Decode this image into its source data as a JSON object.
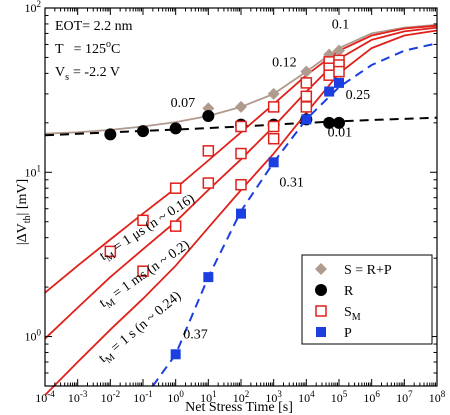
{
  "chart_data": {
    "type": "scatter",
    "xscale": "log",
    "yscale": "log",
    "xlim": [
      0.0001,
      100000000
    ],
    "ylim": [
      0.5,
      100
    ],
    "xlabel": "Net Stress Time  [s]",
    "ylabel_main": "|ΔV",
    "ylabel_sub": "th",
    "ylabel_tail": "|  [mV]",
    "x_ticks": [
      {
        "v": 0.0001,
        "m": "10",
        "e": "-4"
      },
      {
        "v": 0.001,
        "m": "10",
        "e": "-3"
      },
      {
        "v": 0.01,
        "m": "10",
        "e": "-2"
      },
      {
        "v": 0.1,
        "m": "10",
        "e": "-1"
      },
      {
        "v": 1,
        "m": "10",
        "e": "0"
      },
      {
        "v": 10,
        "m": "10",
        "e": "1"
      },
      {
        "v": 100,
        "m": "10",
        "e": "2"
      },
      {
        "v": 1000,
        "m": "10",
        "e": "3"
      },
      {
        "v": 10000,
        "m": "10",
        "e": "4"
      },
      {
        "v": 100000,
        "m": "10",
        "e": "5"
      },
      {
        "v": 1000000,
        "m": "10",
        "e": "6"
      },
      {
        "v": 10000000,
        "m": "10",
        "e": "7"
      },
      {
        "v": 100000000,
        "m": "10",
        "e": "8"
      }
    ],
    "y_ticks": [
      {
        "v": 1,
        "m": "10",
        "e": "0"
      },
      {
        "v": 10,
        "m": "10",
        "e": "1"
      },
      {
        "v": 100,
        "m": "10",
        "e": "2"
      }
    ],
    "conditions": {
      "eot_label": "EOT",
      "eot_value": "= 2.2 nm",
      "temp_label": "T",
      "temp_value": "= 125",
      "temp_sup": "o",
      "temp_unit": "C",
      "vs_main": "V",
      "vs_sub": "s",
      "vs_value": "= -2.2 V"
    },
    "series": [
      {
        "name": "S = R+P",
        "marker": "diamond",
        "color": "#b09a8e",
        "points": [
          [
            10,
            24.5
          ],
          [
            100,
            25
          ],
          [
            1000,
            30
          ],
          [
            10000,
            41
          ],
          [
            50000,
            52
          ],
          [
            100000,
            55
          ]
        ]
      },
      {
        "name": "R",
        "marker": "circle",
        "color": "#000000",
        "points": [
          [
            0.01,
            17
          ],
          [
            0.1,
            17.8
          ],
          [
            1,
            18.5
          ],
          [
            10,
            22
          ],
          [
            100,
            19.5
          ],
          [
            1000,
            19.5
          ],
          [
            10000,
            21
          ],
          [
            50000,
            20
          ],
          [
            100000,
            20
          ]
        ]
      },
      {
        "name_main": "S",
        "name_sub": "M",
        "marker": "square-open",
        "color": "#e0201a",
        "points": [
          [
            0.01,
            3.3
          ],
          [
            0.1,
            5.1
          ],
          [
            0.1,
            2.5
          ],
          [
            1,
            8
          ],
          [
            1,
            4.7
          ],
          [
            10,
            13.5
          ],
          [
            10,
            8.6
          ],
          [
            100,
            19
          ],
          [
            100,
            13
          ],
          [
            100,
            8.4
          ],
          [
            1000,
            25
          ],
          [
            1000,
            19
          ],
          [
            1000,
            16
          ],
          [
            10000,
            35
          ],
          [
            10000,
            29
          ],
          [
            10000,
            25
          ],
          [
            50000,
            47
          ],
          [
            50000,
            43
          ],
          [
            50000,
            39
          ],
          [
            100000,
            48
          ],
          [
            100000,
            45
          ],
          [
            100000,
            41
          ]
        ]
      },
      {
        "name": "P",
        "marker": "square",
        "color": "#1b3fe0",
        "points": [
          [
            1,
            0.78
          ],
          [
            10,
            2.3
          ],
          [
            100,
            5.6
          ],
          [
            1000,
            11.5
          ],
          [
            10000,
            21
          ],
          [
            50000,
            31
          ],
          [
            100000,
            35
          ]
        ]
      }
    ],
    "fits": [
      {
        "id": "fit-s-upper",
        "color": "#b09a8e",
        "dash": false,
        "points": [
          [
            0.0001,
            17.2
          ],
          [
            0.001,
            17.5
          ],
          [
            0.01,
            18.1
          ],
          [
            0.1,
            19
          ],
          [
            1,
            20.2
          ],
          [
            10,
            22
          ],
          [
            100,
            25
          ],
          [
            1000,
            30
          ],
          [
            10000,
            41
          ],
          [
            100000,
            57
          ],
          [
            1000000,
            70
          ],
          [
            10000000,
            76
          ],
          [
            100000000,
            79
          ]
        ]
      },
      {
        "id": "fit-r",
        "color": "#000000",
        "dash": true,
        "points": [
          [
            0.0001,
            16.8
          ],
          [
            0.01,
            17.5
          ],
          [
            1,
            18.2
          ],
          [
            100,
            19
          ],
          [
            10000,
            20
          ],
          [
            1000000,
            20.8
          ],
          [
            100000000,
            21.5
          ]
        ]
      },
      {
        "id": "fit-sm-1us",
        "color": "#e0201a",
        "dash": false,
        "points": [
          [
            0.0001,
            1.85
          ],
          [
            0.001,
            2.7
          ],
          [
            0.01,
            3.9
          ],
          [
            0.1,
            5.6
          ],
          [
            1,
            8
          ],
          [
            10,
            11.8
          ],
          [
            100,
            17.5
          ],
          [
            1000,
            26
          ],
          [
            10000,
            39
          ],
          [
            100000,
            55
          ],
          [
            1000000,
            68
          ],
          [
            10000000,
            75
          ],
          [
            100000000,
            78
          ]
        ]
      },
      {
        "id": "fit-sm-1ms",
        "color": "#e0201a",
        "dash": false,
        "points": [
          [
            0.0001,
            0.97
          ],
          [
            0.001,
            1.5
          ],
          [
            0.01,
            2.3
          ],
          [
            0.1,
            3.4
          ],
          [
            1,
            5
          ],
          [
            10,
            7.8
          ],
          [
            100,
            12
          ],
          [
            1000,
            19
          ],
          [
            10000,
            31
          ],
          [
            100000,
            49
          ],
          [
            1000000,
            64
          ],
          [
            10000000,
            72
          ],
          [
            100000000,
            76
          ]
        ]
      },
      {
        "id": "fit-sm-1s",
        "color": "#e0201a",
        "dash": false,
        "points": [
          [
            0.0001,
            0.44
          ],
          [
            0.001,
            0.7
          ],
          [
            0.01,
            1.1
          ],
          [
            0.1,
            1.7
          ],
          [
            1,
            2.7
          ],
          [
            10,
            4.6
          ],
          [
            100,
            7.8
          ],
          [
            1000,
            13
          ],
          [
            10000,
            23
          ],
          [
            100000,
            40
          ],
          [
            1000000,
            57
          ],
          [
            10000000,
            68
          ],
          [
            100000000,
            73
          ]
        ]
      },
      {
        "id": "fit-p",
        "color": "#1b3fe0",
        "dash": true,
        "points": [
          [
            0.2,
            0.5
          ],
          [
            1,
            0.78
          ],
          [
            10,
            2.3
          ],
          [
            100,
            5.8
          ],
          [
            1000,
            11.5
          ],
          [
            10000,
            21
          ],
          [
            100000,
            33
          ],
          [
            1000000,
            45
          ],
          [
            10000000,
            55
          ],
          [
            100000000,
            61
          ]
        ]
      }
    ],
    "exponent_annotations": [
      {
        "text": "0.07",
        "x": 0.7,
        "y": 25
      },
      {
        "text": "0.12",
        "x": 900,
        "y": 44
      },
      {
        "text": "0.1",
        "x": 60000,
        "y": 75
      },
      {
        "text": "0.25",
        "x": 160000,
        "y": 28
      },
      {
        "text": "0.01",
        "x": 45000,
        "y": 16.5
      },
      {
        "text": "0.31",
        "x": 1500,
        "y": 8.2
      },
      {
        "text": "0.37",
        "x": 1.7,
        "y": 0.97
      }
    ],
    "fit_labels": [
      {
        "id": "label-1us",
        "t": "t",
        "sub": "M",
        "text": " = 1 μs  (n ~ 0.16)",
        "x": 0.006,
        "y": 2.9,
        "angle": -33
      },
      {
        "id": "label-1ms",
        "t": "t",
        "sub": "M",
        "text": " = 1 ms  (n ~ 0.2)",
        "x": 0.006,
        "y": 1.5,
        "angle": -35
      },
      {
        "id": "label-1s",
        "t": "t",
        "sub": "M",
        "text": " = 1 s  (n ~ 0.24)",
        "x": 0.006,
        "y": 0.69,
        "angle": -40
      }
    ],
    "legend_position": "bottom-right"
  }
}
